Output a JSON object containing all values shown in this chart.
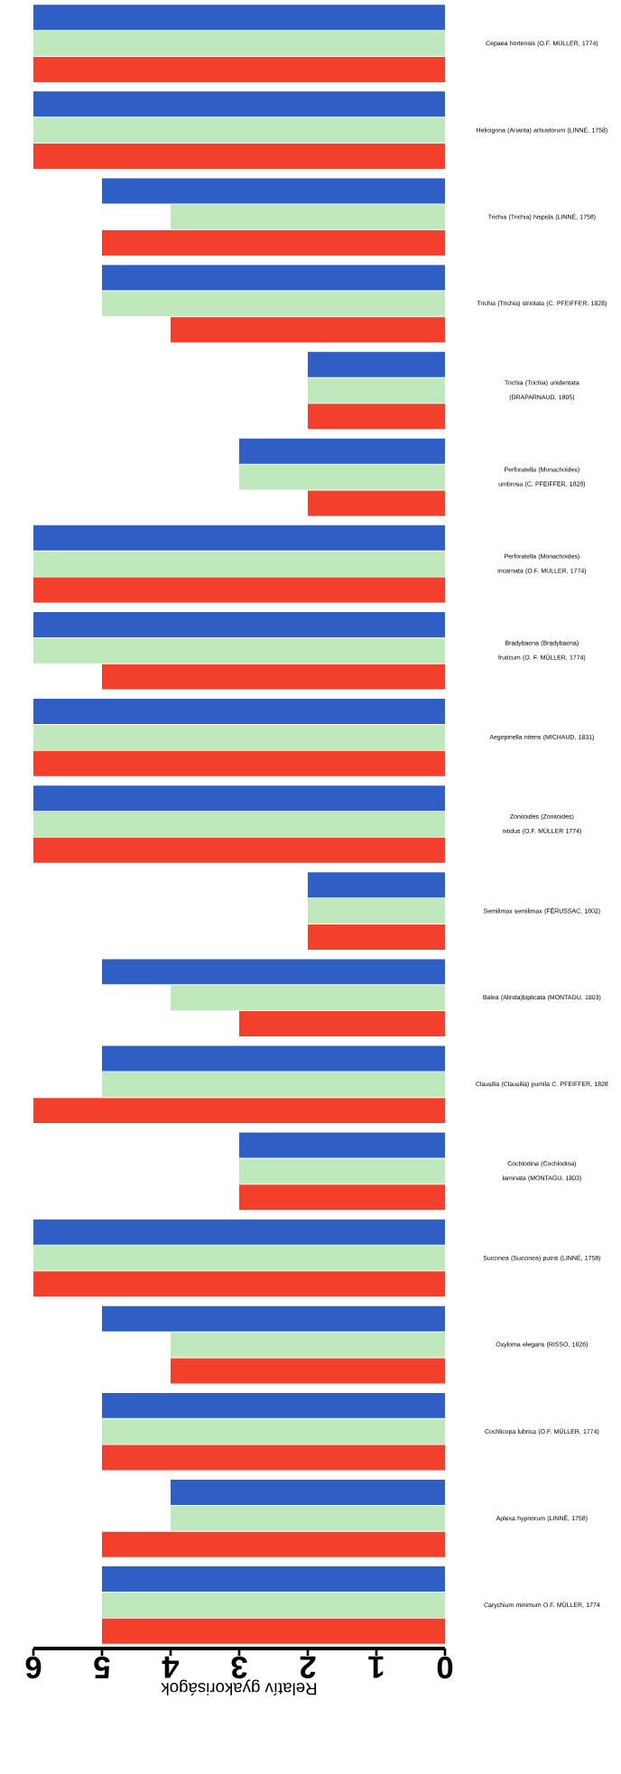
{
  "chart_data": {
    "type": "bar",
    "orientation": "horizontal",
    "xlabel": "Relatív gyakoriságok",
    "categories": [
      "Cepaea hortensis (O.F. MÜLLER, 1774)",
      "Helicigona (Arianta) arbustorum (LINNÉ, 1758)",
      "Trichia (Trichia) hispida (LINNÉ, 1758)",
      "Trichia (Trichia) striolata (C. PFEIFFER, 1828)",
      "Trichia (Trichia) unidentata (DRAPARNAUD, 1805)",
      "Perforatella (Monachoides) umbrosa (C. PFEIFFER, 1828)",
      "Perforatella (Monachoides) incarnata (O.F. MÜLLER, 1774)",
      "Bradybaena (Bradybaena) fruticum (O. F. MÜLLER, 1774)",
      "Aegopinella nitens (MICHAUD, 1831)",
      "Zonitoides (Zonitoides) nitidus (O.F. MÜLLER 1774)",
      "Semilimax semilimax (FÉRUSSAC, 1802)",
      "Balea (Alinda)biplicata (MONTAGU, 1803)",
      "Clausilia (Clausilia) pumila C. PFEIFFER, 1828",
      "Cochlodina (Cochlodina) laminata (MONTAGU, 1803)",
      "Succinea (Succinea) putris (LINNÉ, 1758)",
      "Oxyloma elegans (RISSO, 1826)",
      "Cochlicopa lubrica (O.F. MÜLLER, 1774)",
      "Aplexa hypnorum (LINNÉ, 1758)",
      "Carychium minimum O.F. MÜLLER, 1774"
    ],
    "series": [
      {
        "color": "#2f5fc4",
        "values": [
          6,
          6,
          5,
          5,
          2,
          3,
          6,
          6,
          6,
          6,
          2,
          5,
          5,
          3,
          6,
          5,
          5,
          4,
          5
        ]
      },
      {
        "color": "#bfe8bc",
        "values": [
          6,
          6,
          4,
          5,
          2,
          3,
          6,
          6,
          6,
          6,
          2,
          4,
          5,
          3,
          6,
          4,
          5,
          4,
          5
        ]
      },
      {
        "color": "#f2402c",
        "values": [
          6,
          6,
          5,
          4,
          2,
          2,
          6,
          5,
          6,
          6,
          2,
          3,
          6,
          3,
          6,
          4,
          5,
          5,
          5
        ]
      }
    ],
    "xlim": [
      6,
      0
    ],
    "xticks": [
      0,
      1,
      2,
      3,
      4,
      5,
      6
    ]
  }
}
